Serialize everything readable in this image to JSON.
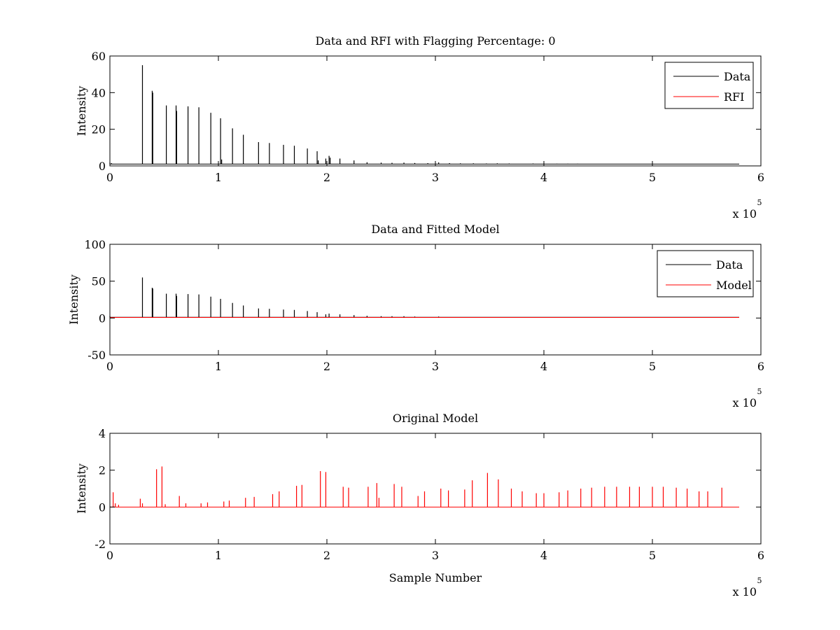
{
  "chart_data": [
    {
      "type": "line",
      "title": "Data and RFI with Flagging Percentage: 0",
      "xlabel": "",
      "ylabel": "Intensity",
      "xlim": [
        0,
        6
      ],
      "ylim": [
        0,
        60
      ],
      "x_ticks": [
        "0",
        "1",
        "2",
        "3",
        "4",
        "5",
        "6"
      ],
      "y_ticks": [
        "0",
        "20",
        "40",
        "60"
      ],
      "x_exponent": "x 10",
      "x_exponent_power": "5",
      "grid": false,
      "legend_position": "top-right",
      "legend": [
        "Data",
        "RFI"
      ],
      "colors": {
        "Data": "#000000",
        "RFI": "#ff0000"
      },
      "series": [
        {
          "name": "Data",
          "baseline": 1,
          "x_end": 5.8,
          "spikes": [
            [
              0.0,
              1.8
            ],
            [
              0.015,
              1.5
            ],
            [
              0.3,
              55
            ],
            [
              0.39,
              41
            ],
            [
              0.395,
              40
            ],
            [
              0.52,
              33
            ],
            [
              0.61,
              33
            ],
            [
              0.615,
              30
            ],
            [
              0.72,
              32.5
            ],
            [
              0.82,
              32
            ],
            [
              0.93,
              29
            ],
            [
              1.02,
              26
            ],
            [
              1.03,
              3.5
            ],
            [
              1.13,
              20.5
            ],
            [
              1.23,
              17
            ],
            [
              1.37,
              13
            ],
            [
              1.47,
              12.5
            ],
            [
              1.6,
              11.5
            ],
            [
              1.7,
              11
            ],
            [
              1.82,
              9.5
            ],
            [
              1.91,
              8
            ],
            [
              1.92,
              3
            ],
            [
              1.99,
              4
            ],
            [
              2.02,
              5.5
            ],
            [
              2.03,
              4.5
            ],
            [
              2.12,
              4
            ],
            [
              2.25,
              3
            ],
            [
              2.37,
              2
            ],
            [
              2.5,
              1.8
            ],
            [
              2.6,
              1.7
            ],
            [
              2.71,
              1.8
            ],
            [
              2.81,
              1.6
            ],
            [
              2.93,
              1.5
            ],
            [
              3.03,
              1.9
            ],
            [
              3.13,
              1.5
            ],
            [
              3.23,
              1.4
            ],
            [
              3.35,
              1.4
            ],
            [
              3.47,
              1.3
            ],
            [
              3.57,
              1.4
            ],
            [
              3.68,
              1.3
            ],
            [
              3.9,
              1.3
            ],
            [
              4.0,
              1.3
            ],
            [
              4.12,
              1.2
            ],
            [
              4.22,
              1.2
            ],
            [
              4.31,
              1.2
            ]
          ]
        },
        {
          "name": "RFI",
          "baseline": 0,
          "x_end": 5.8,
          "spikes": []
        }
      ]
    },
    {
      "type": "line",
      "title": "Data and Fitted Model",
      "xlabel": "",
      "ylabel": "Intensity",
      "xlim": [
        0,
        6
      ],
      "ylim": [
        -50,
        100
      ],
      "x_ticks": [
        "0",
        "1",
        "2",
        "3",
        "4",
        "5",
        "6"
      ],
      "y_ticks": [
        "-50",
        "0",
        "50",
        "100"
      ],
      "x_exponent": "x 10",
      "x_exponent_power": "5",
      "grid": false,
      "legend_position": "top-right",
      "legend": [
        "Data",
        "Model"
      ],
      "colors": {
        "Data": "#000000",
        "Model": "#ff0000"
      },
      "series": [
        {
          "name": "Data",
          "baseline": 1,
          "x_end": 5.8,
          "spikes": [
            [
              0.0,
              2.5
            ],
            [
              0.3,
              55
            ],
            [
              0.39,
              41
            ],
            [
              0.395,
              40
            ],
            [
              0.52,
              33
            ],
            [
              0.61,
              33
            ],
            [
              0.615,
              30
            ],
            [
              0.72,
              32.5
            ],
            [
              0.82,
              32
            ],
            [
              0.93,
              29
            ],
            [
              1.02,
              26
            ],
            [
              1.13,
              20.5
            ],
            [
              1.23,
              17
            ],
            [
              1.37,
              13
            ],
            [
              1.47,
              12.5
            ],
            [
              1.6,
              11.5
            ],
            [
              1.7,
              11
            ],
            [
              1.82,
              9.5
            ],
            [
              1.91,
              8
            ],
            [
              1.99,
              5
            ],
            [
              2.02,
              6
            ],
            [
              2.12,
              5
            ],
            [
              2.25,
              4
            ],
            [
              2.37,
              3
            ],
            [
              2.5,
              2.5
            ],
            [
              2.6,
              2.5
            ],
            [
              2.71,
              2.5
            ],
            [
              2.81,
              2
            ],
            [
              3.03,
              2
            ]
          ]
        },
        {
          "name": "Model",
          "baseline": 0.8,
          "x_end": 5.8,
          "spikes": []
        }
      ]
    },
    {
      "type": "line",
      "title": "Original Model",
      "xlabel": "Sample Number",
      "ylabel": "Intensity",
      "xlim": [
        0,
        6
      ],
      "ylim": [
        -2,
        4
      ],
      "x_ticks": [
        "0",
        "1",
        "2",
        "3",
        "4",
        "5",
        "6"
      ],
      "y_ticks": [
        "-2",
        "0",
        "2",
        "4"
      ],
      "x_exponent": "x 10",
      "x_exponent_power": "5",
      "grid": false,
      "colors": {
        "Model": "#ff0000"
      },
      "series": [
        {
          "baseline": 0,
          "x_end": 5.8,
          "spikes": [
            [
              0.03,
              0.8
            ],
            [
              0.05,
              0.2
            ],
            [
              0.08,
              0.12
            ],
            [
              0.28,
              0.45
            ],
            [
              0.3,
              0.2
            ],
            [
              0.43,
              2.05
            ],
            [
              0.48,
              2.2
            ],
            [
              0.51,
              0.15
            ],
            [
              0.64,
              0.6
            ],
            [
              0.7,
              0.2
            ],
            [
              0.84,
              0.2
            ],
            [
              0.9,
              0.25
            ],
            [
              1.05,
              0.3
            ],
            [
              1.1,
              0.35
            ],
            [
              1.25,
              0.5
            ],
            [
              1.33,
              0.55
            ],
            [
              1.5,
              0.7
            ],
            [
              1.56,
              0.85
            ],
            [
              1.72,
              1.15
            ],
            [
              1.77,
              1.2
            ],
            [
              1.94,
              1.95
            ],
            [
              1.99,
              1.9
            ],
            [
              2.15,
              1.1
            ],
            [
              2.2,
              1.05
            ],
            [
              2.38,
              1.1
            ],
            [
              2.46,
              1.3
            ],
            [
              2.48,
              0.5
            ],
            [
              2.62,
              1.25
            ],
            [
              2.69,
              1.1
            ],
            [
              2.84,
              0.6
            ],
            [
              2.9,
              0.85
            ],
            [
              3.05,
              1.0
            ],
            [
              3.12,
              0.9
            ],
            [
              3.27,
              0.95
            ],
            [
              3.34,
              1.45
            ],
            [
              3.48,
              1.85
            ],
            [
              3.58,
              1.5
            ],
            [
              3.7,
              1.0
            ],
            [
              3.8,
              0.85
            ],
            [
              3.93,
              0.75
            ],
            [
              4.0,
              0.75
            ],
            [
              4.14,
              0.8
            ],
            [
              4.22,
              0.9
            ],
            [
              4.34,
              1.0
            ],
            [
              4.44,
              1.05
            ],
            [
              4.56,
              1.1
            ],
            [
              4.67,
              1.1
            ],
            [
              4.79,
              1.1
            ],
            [
              4.88,
              1.1
            ],
            [
              5.0,
              1.1
            ],
            [
              5.1,
              1.1
            ],
            [
              5.22,
              1.05
            ],
            [
              5.32,
              1.0
            ],
            [
              5.43,
              0.85
            ],
            [
              5.51,
              0.85
            ],
            [
              5.64,
              1.05
            ]
          ]
        }
      ]
    }
  ]
}
